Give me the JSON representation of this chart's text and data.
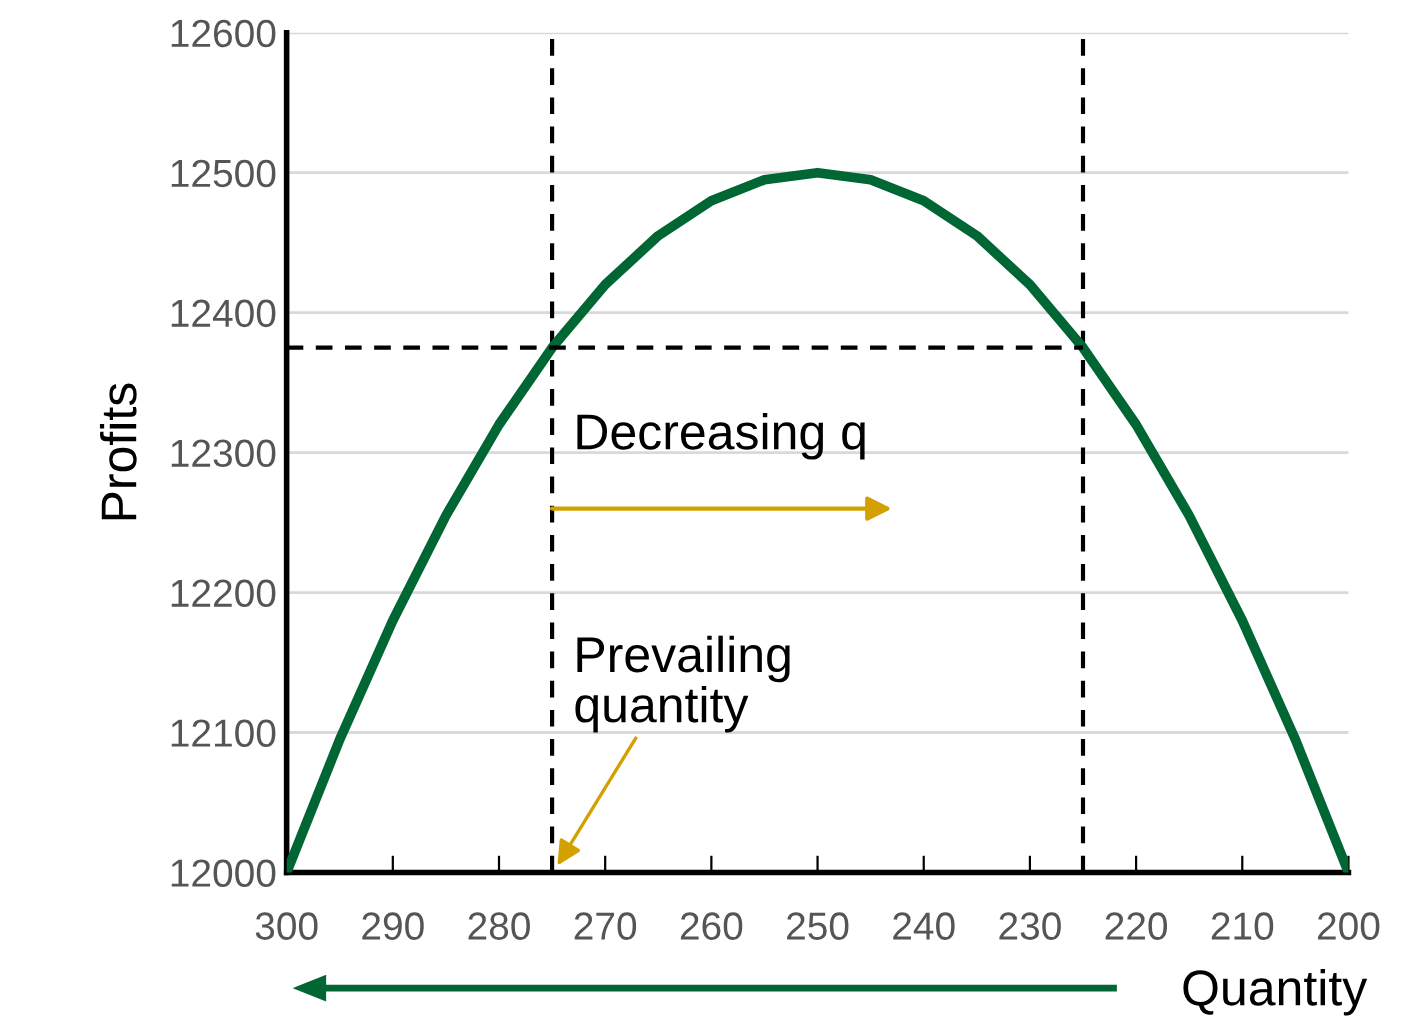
{
  "chart_data": {
    "type": "line",
    "x": [
      300,
      295,
      290,
      285,
      280,
      275,
      270,
      265,
      260,
      255,
      250,
      245,
      240,
      235,
      230,
      225,
      220,
      215,
      210,
      205,
      200
    ],
    "series": [
      {
        "color": "#006633",
        "values": [
          12000,
          12095,
          12180,
          12255,
          12320,
          12375,
          12420,
          12455,
          12480,
          12495,
          12500,
          12495,
          12480,
          12455,
          12420,
          12375,
          12320,
          12255,
          12180,
          12095,
          12000
        ]
      },
      {
        "color": "#000000",
        "line_style": "dashed",
        "x": [
          300,
          225
        ],
        "values": [
          12375,
          12375
        ]
      }
    ],
    "xlim": [
      300,
      200
    ],
    "ylim": [
      12000,
      12600
    ],
    "xticks": [
      300,
      290,
      280,
      270,
      260,
      250,
      240,
      230,
      220,
      210,
      200
    ],
    "yticks": [
      12000,
      12100,
      12200,
      12300,
      12400,
      12500,
      12600
    ],
    "xlabel": "Quantity",
    "ylabel": "Profits",
    "ref_lines": [
      {
        "axis": "x",
        "value": 275,
        "color": "#000000",
        "line_style": "dashed"
      },
      {
        "axis": "x",
        "value": 225,
        "color": "#000000",
        "line_style": "dashed"
      }
    ],
    "annotations": [
      {
        "text": "Decreasing q",
        "x": 275,
        "y": 12260
      },
      {
        "text": "Prevailing quantity",
        "x": 275,
        "y": 12000
      }
    ],
    "grid": "y",
    "marker": "none",
    "line_style": "solid"
  }
}
